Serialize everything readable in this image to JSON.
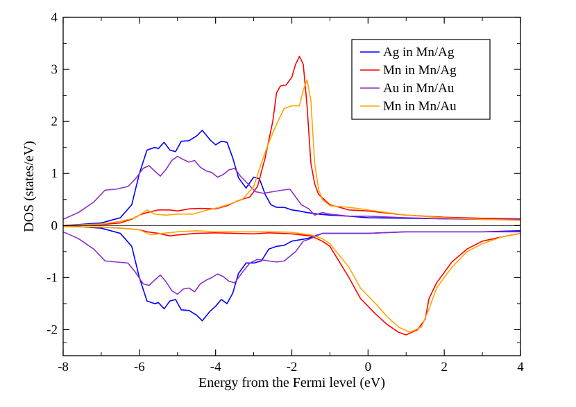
{
  "chart_data": {
    "type": "line",
    "title": "",
    "xlabel": "Energy from the Fermi level (eV)",
    "ylabel": "DOS (states/eV)",
    "xlim": [
      -8,
      4
    ],
    "ylim": [
      -2.5,
      4
    ],
    "xticks": [
      -8,
      -6,
      -4,
      -2,
      0,
      2,
      4
    ],
    "xtick_labels": [
      "-8",
      "-6",
      "-4",
      "-2",
      "0",
      "2",
      "4"
    ],
    "yticks": [
      -2,
      -1,
      0,
      1,
      2,
      3,
      4
    ],
    "ytick_labels": [
      "-2",
      "-1",
      "0",
      "1",
      "2",
      "3",
      "4"
    ],
    "grid": false,
    "legend_position": "top-right",
    "series": [
      {
        "name": "Ag in Mn/Ag",
        "color": "#0000ff",
        "up": [
          [
            -8,
            0.0
          ],
          [
            -7,
            0.05
          ],
          [
            -6.5,
            0.15
          ],
          [
            -6.2,
            0.4
          ],
          [
            -6.0,
            1.0
          ],
          [
            -5.8,
            1.45
          ],
          [
            -5.6,
            1.5
          ],
          [
            -5.5,
            1.48
          ],
          [
            -5.35,
            1.6
          ],
          [
            -5.2,
            1.45
          ],
          [
            -5.05,
            1.42
          ],
          [
            -4.9,
            1.62
          ],
          [
            -4.7,
            1.63
          ],
          [
            -4.5,
            1.72
          ],
          [
            -4.35,
            1.83
          ],
          [
            -4.15,
            1.65
          ],
          [
            -4.0,
            1.55
          ],
          [
            -3.85,
            1.62
          ],
          [
            -3.7,
            1.6
          ],
          [
            -3.55,
            1.3
          ],
          [
            -3.4,
            0.92
          ],
          [
            -3.2,
            0.72
          ],
          [
            -3.0,
            0.93
          ],
          [
            -2.85,
            0.9
          ],
          [
            -2.7,
            0.6
          ],
          [
            -2.55,
            0.4
          ],
          [
            -2.4,
            0.35
          ],
          [
            -2.2,
            0.35
          ],
          [
            -2.0,
            0.3
          ],
          [
            -1.8,
            0.28
          ],
          [
            -1.6,
            0.25
          ],
          [
            -1.3,
            0.22
          ],
          [
            -1.0,
            0.2
          ],
          [
            -0.5,
            0.18
          ],
          [
            0,
            0.15
          ],
          [
            1,
            0.14
          ],
          [
            2,
            0.13
          ],
          [
            3,
            0.13
          ],
          [
            4,
            0.12
          ]
        ],
        "down": [
          [
            -8,
            0.0
          ],
          [
            -7,
            -0.05
          ],
          [
            -6.5,
            -0.15
          ],
          [
            -6.2,
            -0.4
          ],
          [
            -6.0,
            -1.0
          ],
          [
            -5.8,
            -1.45
          ],
          [
            -5.6,
            -1.5
          ],
          [
            -5.5,
            -1.48
          ],
          [
            -5.35,
            -1.6
          ],
          [
            -5.2,
            -1.45
          ],
          [
            -5.05,
            -1.42
          ],
          [
            -4.9,
            -1.62
          ],
          [
            -4.7,
            -1.63
          ],
          [
            -4.5,
            -1.72
          ],
          [
            -4.35,
            -1.83
          ],
          [
            -4.15,
            -1.65
          ],
          [
            -4.0,
            -1.55
          ],
          [
            -3.85,
            -1.42
          ],
          [
            -3.7,
            -1.5
          ],
          [
            -3.55,
            -1.3
          ],
          [
            -3.4,
            -0.92
          ],
          [
            -3.2,
            -0.72
          ],
          [
            -3.0,
            -0.72
          ],
          [
            -2.8,
            -0.68
          ],
          [
            -2.6,
            -0.45
          ],
          [
            -2.4,
            -0.4
          ],
          [
            -2.2,
            -0.38
          ],
          [
            -2.0,
            -0.3
          ],
          [
            -1.6,
            -0.25
          ],
          [
            -1.4,
            -0.2
          ],
          [
            -1.2,
            -0.15
          ],
          [
            -1.0,
            -0.15
          ],
          [
            0,
            -0.15
          ],
          [
            1,
            -0.12
          ],
          [
            2,
            -0.12
          ],
          [
            3,
            -0.12
          ],
          [
            4,
            -0.1
          ]
        ]
      },
      {
        "name": "Mn in Mn/Ag",
        "color": "#ff0000",
        "up": [
          [
            -8,
            0.0
          ],
          [
            -7,
            0.02
          ],
          [
            -6.5,
            0.05
          ],
          [
            -6.2,
            0.12
          ],
          [
            -6.0,
            0.2
          ],
          [
            -5.8,
            0.25
          ],
          [
            -5.5,
            0.3
          ],
          [
            -5.2,
            0.3
          ],
          [
            -5.0,
            0.28
          ],
          [
            -4.7,
            0.32
          ],
          [
            -4.4,
            0.33
          ],
          [
            -4.0,
            0.32
          ],
          [
            -3.7,
            0.38
          ],
          [
            -3.4,
            0.48
          ],
          [
            -3.1,
            0.55
          ],
          [
            -2.9,
            0.75
          ],
          [
            -2.7,
            1.3
          ],
          [
            -2.5,
            2.0
          ],
          [
            -2.4,
            2.55
          ],
          [
            -2.3,
            2.68
          ],
          [
            -2.15,
            2.7
          ],
          [
            -2.0,
            2.85
          ],
          [
            -1.9,
            3.1
          ],
          [
            -1.8,
            3.25
          ],
          [
            -1.7,
            3.1
          ],
          [
            -1.6,
            2.3
          ],
          [
            -1.5,
            1.2
          ],
          [
            -1.4,
            0.8
          ],
          [
            -1.3,
            0.6
          ],
          [
            -1.0,
            0.4
          ],
          [
            -0.5,
            0.3
          ],
          [
            0,
            0.28
          ],
          [
            1,
            0.2
          ],
          [
            2,
            0.16
          ],
          [
            3,
            0.14
          ],
          [
            4,
            0.13
          ]
        ],
        "down": [
          [
            -8,
            -0.02
          ],
          [
            -7,
            -0.03
          ],
          [
            -6.5,
            -0.05
          ],
          [
            -6.0,
            -0.08
          ],
          [
            -5.8,
            -0.12
          ],
          [
            -5.5,
            -0.15
          ],
          [
            -5.2,
            -0.2
          ],
          [
            -5.0,
            -0.18
          ],
          [
            -4.5,
            -0.15
          ],
          [
            -4.0,
            -0.14
          ],
          [
            -3.5,
            -0.15
          ],
          [
            -3.0,
            -0.16
          ],
          [
            -2.6,
            -0.14
          ],
          [
            -2.0,
            -0.16
          ],
          [
            -1.5,
            -0.2
          ],
          [
            -1.2,
            -0.3
          ],
          [
            -1.0,
            -0.4
          ],
          [
            -0.5,
            -1.0
          ],
          [
            -0.2,
            -1.4
          ],
          [
            0.2,
            -1.7
          ],
          [
            0.5,
            -1.9
          ],
          [
            0.8,
            -2.05
          ],
          [
            1.0,
            -2.1
          ],
          [
            1.3,
            -2.0
          ],
          [
            1.5,
            -1.8
          ],
          [
            1.6,
            -1.4
          ],
          [
            1.8,
            -1.1
          ],
          [
            2.2,
            -0.7
          ],
          [
            2.6,
            -0.45
          ],
          [
            3.0,
            -0.3
          ],
          [
            3.5,
            -0.22
          ],
          [
            4.0,
            -0.15
          ]
        ]
      },
      {
        "name": "Au in Mn/Au",
        "color": "#8b2fc9",
        "up": [
          [
            -8,
            0.12
          ],
          [
            -7.6,
            0.25
          ],
          [
            -7.2,
            0.45
          ],
          [
            -6.9,
            0.68
          ],
          [
            -6.6,
            0.7
          ],
          [
            -6.3,
            0.75
          ],
          [
            -6.1,
            0.9
          ],
          [
            -5.9,
            1.1
          ],
          [
            -5.75,
            1.15
          ],
          [
            -5.6,
            1.05
          ],
          [
            -5.45,
            0.95
          ],
          [
            -5.3,
            1.08
          ],
          [
            -5.15,
            1.25
          ],
          [
            -5.0,
            1.33
          ],
          [
            -4.85,
            1.27
          ],
          [
            -4.7,
            1.22
          ],
          [
            -4.55,
            1.25
          ],
          [
            -4.4,
            1.12
          ],
          [
            -4.25,
            1.05
          ],
          [
            -4.1,
            1.02
          ],
          [
            -3.95,
            0.93
          ],
          [
            -3.8,
            0.98
          ],
          [
            -3.65,
            1.07
          ],
          [
            -3.5,
            1.1
          ],
          [
            -3.35,
            0.95
          ],
          [
            -3.15,
            0.8
          ],
          [
            -2.95,
            0.65
          ],
          [
            -2.75,
            0.62
          ],
          [
            -2.5,
            0.65
          ],
          [
            -2.25,
            0.68
          ],
          [
            -2.05,
            0.7
          ],
          [
            -1.9,
            0.55
          ],
          [
            -1.75,
            0.4
          ],
          [
            -1.55,
            0.32
          ],
          [
            -1.4,
            0.2
          ],
          [
            -1.2,
            0.25
          ],
          [
            -1.0,
            0.22
          ],
          [
            -0.5,
            0.18
          ],
          [
            0,
            0.18
          ],
          [
            1,
            0.15
          ],
          [
            2,
            0.13
          ],
          [
            3,
            0.12
          ],
          [
            4,
            0.12
          ]
        ],
        "down": [
          [
            -8,
            -0.12
          ],
          [
            -7.6,
            -0.25
          ],
          [
            -7.2,
            -0.45
          ],
          [
            -6.9,
            -0.68
          ],
          [
            -6.6,
            -0.7
          ],
          [
            -6.3,
            -0.72
          ],
          [
            -6.1,
            -0.9
          ],
          [
            -5.9,
            -1.12
          ],
          [
            -5.75,
            -1.15
          ],
          [
            -5.6,
            -1.05
          ],
          [
            -5.45,
            -0.95
          ],
          [
            -5.3,
            -1.08
          ],
          [
            -5.15,
            -1.25
          ],
          [
            -5.0,
            -1.32
          ],
          [
            -4.85,
            -1.22
          ],
          [
            -4.7,
            -1.2
          ],
          [
            -4.55,
            -1.27
          ],
          [
            -4.4,
            -1.12
          ],
          [
            -4.25,
            -1.05
          ],
          [
            -4.1,
            -1.0
          ],
          [
            -3.95,
            -0.93
          ],
          [
            -3.8,
            -0.98
          ],
          [
            -3.65,
            -1.07
          ],
          [
            -3.5,
            -1.1
          ],
          [
            -3.3,
            -0.9
          ],
          [
            -3.1,
            -0.72
          ],
          [
            -2.9,
            -0.65
          ],
          [
            -2.6,
            -0.68
          ],
          [
            -2.4,
            -0.7
          ],
          [
            -2.2,
            -0.68
          ],
          [
            -1.9,
            -0.5
          ],
          [
            -1.7,
            -0.3
          ],
          [
            -1.5,
            -0.25
          ],
          [
            -1.2,
            -0.15
          ],
          [
            -1.0,
            -0.15
          ],
          [
            0,
            -0.15
          ],
          [
            1,
            -0.12
          ],
          [
            2,
            -0.12
          ],
          [
            3,
            -0.12
          ],
          [
            4,
            -0.12
          ]
        ]
      },
      {
        "name": "Mn in Mn/Au",
        "color": "#ffa500",
        "up": [
          [
            -8,
            0.0
          ],
          [
            -7,
            0.03
          ],
          [
            -6.5,
            0.08
          ],
          [
            -6.1,
            0.15
          ],
          [
            -5.8,
            0.3
          ],
          [
            -5.6,
            0.22
          ],
          [
            -5.3,
            0.2
          ],
          [
            -5.0,
            0.22
          ],
          [
            -4.6,
            0.22
          ],
          [
            -4.2,
            0.3
          ],
          [
            -3.9,
            0.35
          ],
          [
            -3.6,
            0.42
          ],
          [
            -3.3,
            0.5
          ],
          [
            -3.0,
            0.75
          ],
          [
            -2.8,
            1.2
          ],
          [
            -2.6,
            1.6
          ],
          [
            -2.4,
            1.95
          ],
          [
            -2.2,
            2.25
          ],
          [
            -2.0,
            2.3
          ],
          [
            -1.8,
            2.3
          ],
          [
            -1.7,
            2.6
          ],
          [
            -1.6,
            2.8
          ],
          [
            -1.5,
            2.4
          ],
          [
            -1.4,
            1.2
          ],
          [
            -1.3,
            0.7
          ],
          [
            -1.2,
            0.5
          ],
          [
            -1.0,
            0.38
          ],
          [
            -0.5,
            0.35
          ],
          [
            0,
            0.3
          ],
          [
            1,
            0.2
          ],
          [
            2,
            0.15
          ],
          [
            3,
            0.12
          ],
          [
            4,
            0.1
          ]
        ],
        "down": [
          [
            -8,
            -0.02
          ],
          [
            -7,
            -0.03
          ],
          [
            -6.5,
            -0.05
          ],
          [
            -6.0,
            -0.08
          ],
          [
            -5.7,
            -0.18
          ],
          [
            -5.4,
            -0.15
          ],
          [
            -5.0,
            -0.12
          ],
          [
            -4.5,
            -0.1
          ],
          [
            -4.0,
            -0.12
          ],
          [
            -3.5,
            -0.12
          ],
          [
            -3.0,
            -0.12
          ],
          [
            -2.5,
            -0.12
          ],
          [
            -2.0,
            -0.13
          ],
          [
            -1.5,
            -0.18
          ],
          [
            -1.2,
            -0.25
          ],
          [
            -1.0,
            -0.35
          ],
          [
            -0.5,
            -0.8
          ],
          [
            -0.2,
            -1.2
          ],
          [
            0.2,
            -1.5
          ],
          [
            0.5,
            -1.75
          ],
          [
            0.8,
            -1.95
          ],
          [
            1.1,
            -2.05
          ],
          [
            1.4,
            -1.95
          ],
          [
            1.6,
            -1.6
          ],
          [
            1.8,
            -1.2
          ],
          [
            2.2,
            -0.8
          ],
          [
            2.6,
            -0.5
          ],
          [
            3.0,
            -0.35
          ],
          [
            3.5,
            -0.22
          ],
          [
            4.0,
            -0.15
          ]
        ]
      }
    ]
  }
}
